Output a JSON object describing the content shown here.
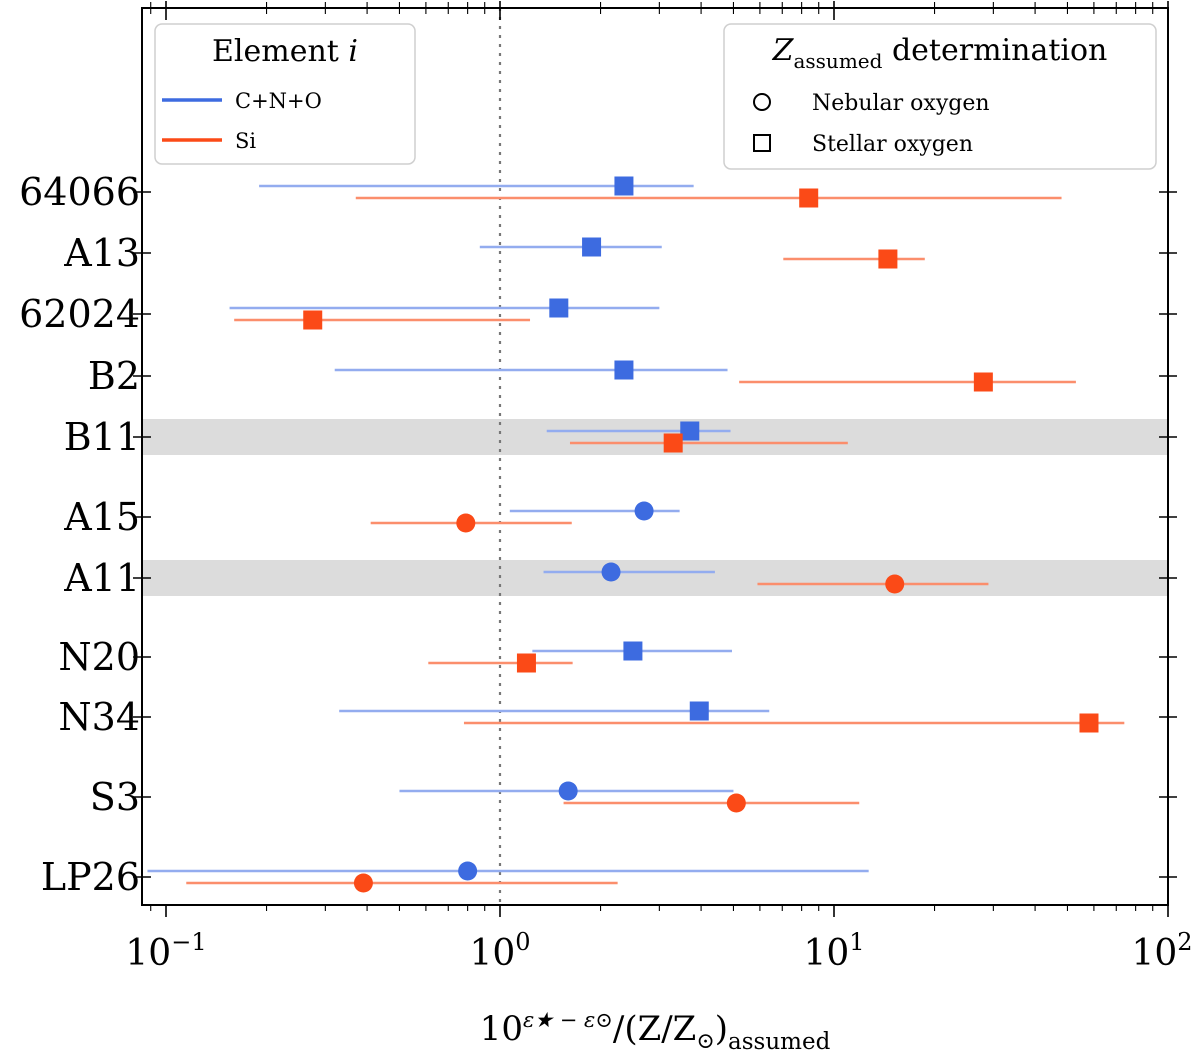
{
  "chart_data": {
    "type": "scatter",
    "title": "",
    "x_scale": "log",
    "xlim": [
      0.088,
      100
    ],
    "xlabel": {
      "base": "10",
      "exponent": "ε★ − ε⊙",
      "middle": "/(Z/Z",
      "sun": "⊙",
      "close": ")",
      "subscript": "assumed"
    },
    "x_tick_labels": [
      {
        "value": 0.1,
        "base": "10",
        "exp": "−1"
      },
      {
        "value": 1,
        "base": "10",
        "exp": "0"
      },
      {
        "value": 10,
        "base": "10",
        "exp": "1"
      },
      {
        "value": 100,
        "base": "10",
        "exp": "2"
      }
    ],
    "reference_line_x": 1,
    "stars": [
      "64066",
      "A13",
      "62024",
      "B2",
      "B11",
      "A15",
      "A11",
      "N20",
      "N34",
      "S3",
      "LP26"
    ],
    "highlighted_stars": [
      "B11",
      "A11"
    ],
    "series": [
      {
        "name": "C+N+O",
        "color": "#3d6be0",
        "bar_color": "#93acef",
        "points": [
          {
            "star": "64066",
            "x": 2.35,
            "xmin": 0.19,
            "xmax": 3.8,
            "marker": "square"
          },
          {
            "star": "A13",
            "x": 1.88,
            "xmin": 0.87,
            "xmax": 3.05,
            "marker": "square"
          },
          {
            "star": "62024",
            "x": 1.5,
            "xmin": 0.155,
            "xmax": 3.0,
            "marker": "square"
          },
          {
            "star": "B2",
            "x": 2.35,
            "xmin": 0.32,
            "xmax": 4.8,
            "marker": "square"
          },
          {
            "star": "B11",
            "x": 3.7,
            "xmin": 1.38,
            "xmax": 4.9,
            "marker": "square"
          },
          {
            "star": "A15",
            "x": 2.7,
            "xmin": 1.07,
            "xmax": 3.45,
            "marker": "circle"
          },
          {
            "star": "A11",
            "x": 2.15,
            "xmin": 1.35,
            "xmax": 4.4,
            "marker": "circle"
          },
          {
            "star": "N20",
            "x": 2.5,
            "xmin": 1.25,
            "xmax": 4.95,
            "marker": "square"
          },
          {
            "star": "N34",
            "x": 3.95,
            "xmin": 0.33,
            "xmax": 6.4,
            "marker": "square"
          },
          {
            "star": "S3",
            "x": 1.6,
            "xmin": 0.5,
            "xmax": 5.0,
            "marker": "circle"
          },
          {
            "star": "LP26",
            "x": 0.8,
            "xmin": 0.088,
            "xmax": 12.7,
            "marker": "circle"
          }
        ]
      },
      {
        "name": "Si",
        "color": "#fb4a17",
        "bar_color": "#fb8e6c",
        "points": [
          {
            "star": "64066",
            "x": 8.4,
            "xmin": 0.37,
            "xmax": 48.0,
            "marker": "square"
          },
          {
            "star": "A13",
            "x": 14.5,
            "xmin": 7.05,
            "xmax": 18.7,
            "marker": "square"
          },
          {
            "star": "62024",
            "x": 0.275,
            "xmin": 0.16,
            "xmax": 1.23,
            "marker": "square"
          },
          {
            "star": "B2",
            "x": 28.0,
            "xmin": 5.2,
            "xmax": 53.0,
            "marker": "square"
          },
          {
            "star": "B11",
            "x": 3.3,
            "xmin": 1.62,
            "xmax": 11.0,
            "marker": "square"
          },
          {
            "star": "A15",
            "x": 0.79,
            "xmin": 0.41,
            "xmax": 1.64,
            "marker": "circle"
          },
          {
            "star": "A11",
            "x": 15.2,
            "xmin": 5.9,
            "xmax": 29.0,
            "marker": "circle"
          },
          {
            "star": "N20",
            "x": 1.2,
            "xmin": 0.61,
            "xmax": 1.65,
            "marker": "square"
          },
          {
            "star": "N34",
            "x": 58.0,
            "xmin": 0.78,
            "xmax": 74.0,
            "marker": "square"
          },
          {
            "star": "S3",
            "x": 5.1,
            "xmin": 1.55,
            "xmax": 11.9,
            "marker": "circle"
          },
          {
            "star": "LP26",
            "x": 0.39,
            "xmin": 0.115,
            "xmax": 2.25,
            "marker": "circle"
          }
        ]
      }
    ],
    "legend_element": {
      "title": "Element",
      "title_italic": "i",
      "placement": "top-left",
      "entries": [
        {
          "label": "C+N+O",
          "color": "#3d6be0"
        },
        {
          "label": "Si",
          "color": "#fb4a17"
        }
      ]
    },
    "legend_determination": {
      "title_symbol": "Z",
      "title_subscript": "assumed",
      "title_rest": "determination",
      "placement": "top-right",
      "entries": [
        {
          "label": "Nebular oxygen",
          "marker": "circle"
        },
        {
          "label": "Stellar oxygen",
          "marker": "square"
        }
      ]
    }
  }
}
